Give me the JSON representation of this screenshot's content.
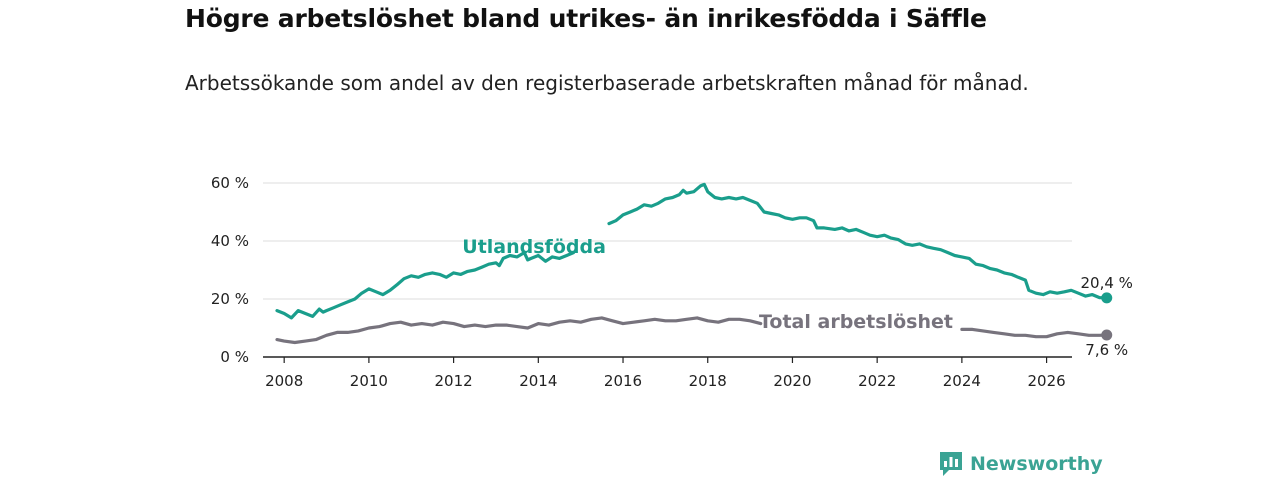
{
  "title": "Högre arbetslöshet bland utrikes- än inrikesfödda i Säffle",
  "subtitle": "Arbetssökande som andel av den registerbaserade arbetskraften månad för månad.",
  "brand": "Newsworthy",
  "colors": {
    "foreign": "#1a9e8c",
    "total": "#77737d",
    "grid": "#dddddd",
    "axis": "#222222"
  },
  "chart_data": {
    "type": "line",
    "title": "Högre arbetslöshet bland utrikes- än inrikesfödda i Säffle",
    "xlabel": "",
    "ylabel": "",
    "xlim": [
      2007.5,
      2026.6
    ],
    "ylim": [
      0,
      60
    ],
    "x_ticks": [
      2008,
      2010,
      2012,
      2014,
      2016,
      2018,
      2020,
      2022,
      2024,
      2026
    ],
    "x_tick_labels": [
      "2008",
      "2010",
      "2012",
      "2014",
      "2016",
      "2018",
      "2020",
      "2022",
      "2024",
      "2026"
    ],
    "y_ticks": [
      0,
      20,
      40,
      60
    ],
    "y_tick_labels": [
      "0 %",
      "20 %",
      "40 %",
      "60 %"
    ],
    "series": [
      {
        "name": "Utlandsfödda",
        "color": "#1a9e8c",
        "end_label": "20,4 %",
        "points": [
          [
            2007.83,
            16
          ],
          [
            2008.0,
            15
          ],
          [
            2008.17,
            13.5
          ],
          [
            2008.33,
            16
          ],
          [
            2008.5,
            15
          ],
          [
            2008.67,
            14
          ],
          [
            2008.83,
            16.5
          ],
          [
            2008.92,
            15.5
          ],
          [
            2009.0,
            16
          ],
          [
            2009.17,
            17
          ],
          [
            2009.33,
            18
          ],
          [
            2009.5,
            19
          ],
          [
            2009.67,
            20
          ],
          [
            2009.83,
            22
          ],
          [
            2010.0,
            23.5
          ],
          [
            2010.17,
            22.5
          ],
          [
            2010.33,
            21.5
          ],
          [
            2010.5,
            23
          ],
          [
            2010.67,
            25
          ],
          [
            2010.83,
            27
          ],
          [
            2011.0,
            28
          ],
          [
            2011.17,
            27.5
          ],
          [
            2011.33,
            28.5
          ],
          [
            2011.5,
            29
          ],
          [
            2011.67,
            28.5
          ],
          [
            2011.83,
            27.5
          ],
          [
            2012.0,
            29
          ],
          [
            2012.17,
            28.5
          ],
          [
            2012.33,
            29.5
          ],
          [
            2012.5,
            30
          ],
          [
            2012.67,
            31
          ],
          [
            2012.83,
            32
          ],
          [
            2013.0,
            32.5
          ],
          [
            2013.08,
            31.5
          ],
          [
            2013.17,
            34
          ],
          [
            2013.33,
            35
          ],
          [
            2013.5,
            34.5
          ],
          [
            2013.67,
            36
          ],
          [
            2013.75,
            33.5
          ],
          [
            2013.83,
            34
          ],
          [
            2014.0,
            35
          ],
          [
            2014.17,
            33
          ],
          [
            2014.33,
            34.5
          ],
          [
            2014.5,
            34
          ],
          [
            2014.67,
            35
          ],
          [
            2014.83,
            36
          ],
          [
            null,
            null
          ],
          [
            2015.67,
            46
          ],
          [
            2015.83,
            47
          ],
          [
            2016.0,
            49
          ],
          [
            2016.17,
            50
          ],
          [
            2016.33,
            51
          ],
          [
            2016.5,
            52.5
          ],
          [
            2016.67,
            52
          ],
          [
            2016.83,
            53
          ],
          [
            2017.0,
            54.5
          ],
          [
            2017.17,
            55
          ],
          [
            2017.33,
            56
          ],
          [
            2017.42,
            57.5
          ],
          [
            2017.5,
            56.5
          ],
          [
            2017.67,
            57
          ],
          [
            2017.83,
            59
          ],
          [
            2017.92,
            59.5
          ],
          [
            2018.0,
            57
          ],
          [
            2018.17,
            55
          ],
          [
            2018.33,
            54.5
          ],
          [
            2018.5,
            55
          ],
          [
            2018.67,
            54.5
          ],
          [
            2018.83,
            55
          ],
          [
            2019.0,
            54
          ],
          [
            2019.17,
            53
          ],
          [
            2019.33,
            50
          ],
          [
            2019.5,
            49.5
          ],
          [
            2019.67,
            49
          ],
          [
            2019.83,
            48
          ],
          [
            2020.0,
            47.5
          ],
          [
            2020.17,
            48
          ],
          [
            2020.33,
            48
          ],
          [
            2020.5,
            47
          ],
          [
            2020.58,
            44.5
          ],
          [
            2020.75,
            44.5
          ],
          [
            2021.0,
            44
          ],
          [
            2021.17,
            44.5
          ],
          [
            2021.33,
            43.5
          ],
          [
            2021.5,
            44
          ],
          [
            2021.67,
            43
          ],
          [
            2021.83,
            42
          ],
          [
            2022.0,
            41.5
          ],
          [
            2022.17,
            42
          ],
          [
            2022.33,
            41
          ],
          [
            2022.5,
            40.5
          ],
          [
            2022.67,
            39
          ],
          [
            2022.83,
            38.5
          ],
          [
            2023.0,
            39
          ],
          [
            2023.17,
            38
          ],
          [
            2023.33,
            37.5
          ],
          [
            2023.5,
            37
          ],
          [
            2023.67,
            36
          ],
          [
            2023.83,
            35
          ],
          [
            2024.0,
            34.5
          ],
          [
            2024.17,
            34
          ],
          [
            2024.33,
            32
          ],
          [
            2024.5,
            31.5
          ],
          [
            2024.67,
            30.5
          ],
          [
            2024.83,
            30
          ],
          [
            2025.0,
            29
          ],
          [
            2025.17,
            28.5
          ],
          [
            2025.33,
            27.5
          ],
          [
            2025.5,
            26.5
          ],
          [
            2025.58,
            23
          ],
          [
            2025.75,
            22
          ],
          [
            2025.92,
            21.5
          ],
          [
            2026.08,
            22.5
          ],
          [
            2026.25,
            22
          ],
          [
            2026.42,
            22.5
          ],
          [
            2026.58,
            23
          ],
          [
            2026.75,
            22
          ],
          [
            2026.92,
            21
          ],
          [
            2027.08,
            21.5
          ],
          [
            2027.25,
            20.5
          ],
          [
            2027.42,
            20.4
          ]
        ]
      },
      {
        "name": "Total arbetslöshet",
        "color": "#77737d",
        "end_label": "7,6 %",
        "points": [
          [
            2007.83,
            6
          ],
          [
            2008.0,
            5.5
          ],
          [
            2008.25,
            5
          ],
          [
            2008.5,
            5.5
          ],
          [
            2008.75,
            6
          ],
          [
            2009.0,
            7.5
          ],
          [
            2009.25,
            8.5
          ],
          [
            2009.5,
            8.5
          ],
          [
            2009.75,
            9
          ],
          [
            2010.0,
            10
          ],
          [
            2010.25,
            10.5
          ],
          [
            2010.5,
            11.5
          ],
          [
            2010.75,
            12
          ],
          [
            2011.0,
            11
          ],
          [
            2011.25,
            11.5
          ],
          [
            2011.5,
            11
          ],
          [
            2011.75,
            12
          ],
          [
            2012.0,
            11.5
          ],
          [
            2012.25,
            10.5
          ],
          [
            2012.5,
            11
          ],
          [
            2012.75,
            10.5
          ],
          [
            2013.0,
            11
          ],
          [
            2013.25,
            11
          ],
          [
            2013.5,
            10.5
          ],
          [
            2013.75,
            10
          ],
          [
            2014.0,
            11.5
          ],
          [
            2014.25,
            11
          ],
          [
            2014.5,
            12
          ],
          [
            2014.75,
            12.5
          ],
          [
            2015.0,
            12
          ],
          [
            2015.25,
            13
          ],
          [
            2015.5,
            13.5
          ],
          [
            2015.75,
            12.5
          ],
          [
            2016.0,
            11.5
          ],
          [
            2016.25,
            12
          ],
          [
            2016.5,
            12.5
          ],
          [
            2016.75,
            13
          ],
          [
            2017.0,
            12.5
          ],
          [
            2017.25,
            12.5
          ],
          [
            2017.5,
            13
          ],
          [
            2017.75,
            13.5
          ],
          [
            2018.0,
            12.5
          ],
          [
            2018.25,
            12
          ],
          [
            2018.5,
            13
          ],
          [
            2018.75,
            13
          ],
          [
            2019.0,
            12.5
          ],
          [
            2019.25,
            11.5
          ],
          [
            null,
            null
          ],
          [
            2024.0,
            9.5
          ],
          [
            2024.25,
            9.5
          ],
          [
            2024.5,
            9
          ],
          [
            2024.75,
            8.5
          ],
          [
            2025.0,
            8
          ],
          [
            2025.25,
            7.5
          ],
          [
            2025.5,
            7.5
          ],
          [
            2025.75,
            7
          ],
          [
            2026.0,
            7
          ],
          [
            2026.25,
            8
          ],
          [
            2026.5,
            8.5
          ],
          [
            2026.75,
            8
          ],
          [
            2027.0,
            7.5
          ],
          [
            2027.25,
            7.5
          ],
          [
            2027.42,
            7.6
          ]
        ]
      }
    ],
    "annotations": [
      {
        "text": "Utlandsfödda",
        "series": 0,
        "x": 2013.9,
        "y": 38
      },
      {
        "text": "Total arbetslöshet",
        "series": 1,
        "x": 2021.5,
        "y": 12
      }
    ]
  }
}
